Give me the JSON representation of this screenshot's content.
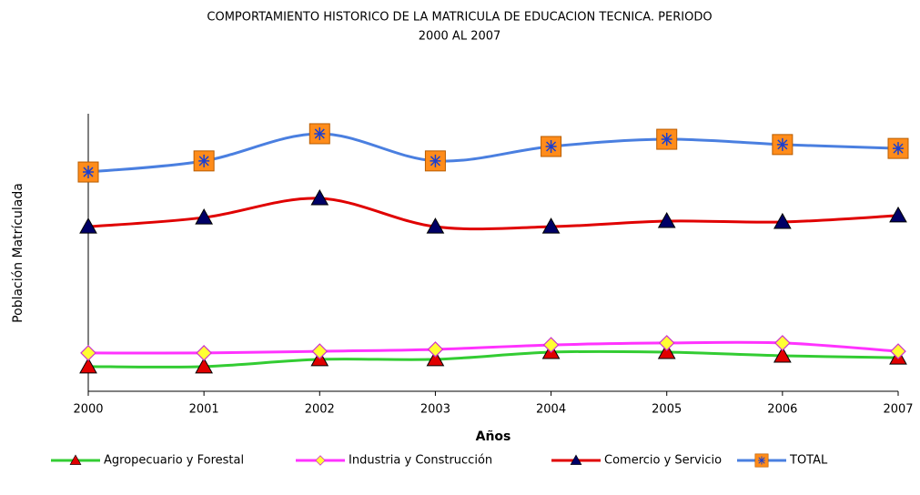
{
  "chart_data": {
    "type": "line",
    "title": [
      "COMPORTAMIENTO HISTORICO DE LA MATRICULA DE EDUCACION TECNICA. PERIODO",
      "2000 AL 2007"
    ],
    "x_label": "Años",
    "y_label": "Población Matrículada",
    "categories": [
      "2000",
      "2001",
      "2002",
      "2003",
      "2004",
      "2005",
      "2006",
      "2007"
    ],
    "ylim": [
      0,
      100
    ],
    "series": [
      {
        "name": "Agropecuario y Forestal",
        "color": "#33cc33",
        "marker": "triangle",
        "marker_color": "#e00000",
        "values": [
          8.9,
          8.9,
          11.5,
          11.5,
          14.1,
          14.1,
          12.8,
          12.1
        ]
      },
      {
        "name": "Industria y Construcción",
        "color": "#ff33ff",
        "marker": "diamond",
        "marker_color": "#ffff33",
        "values": [
          13.8,
          13.8,
          14.4,
          15.1,
          16.7,
          17.4,
          17.4,
          14.4
        ]
      },
      {
        "name": "Comercio y Servicio",
        "color": "#e00000",
        "marker": "triangle",
        "marker_color": "#000066",
        "values": [
          59.3,
          62.6,
          69.5,
          59.3,
          59.3,
          61.3,
          61.0,
          63.3
        ]
      },
      {
        "name": "TOTAL",
        "color": "#4a7fe0",
        "marker": "square-star",
        "marker_color": "#ff8c1a",
        "values": [
          79.0,
          83.0,
          92.8,
          83.0,
          88.2,
          90.8,
          88.9,
          87.5
        ]
      }
    ]
  }
}
